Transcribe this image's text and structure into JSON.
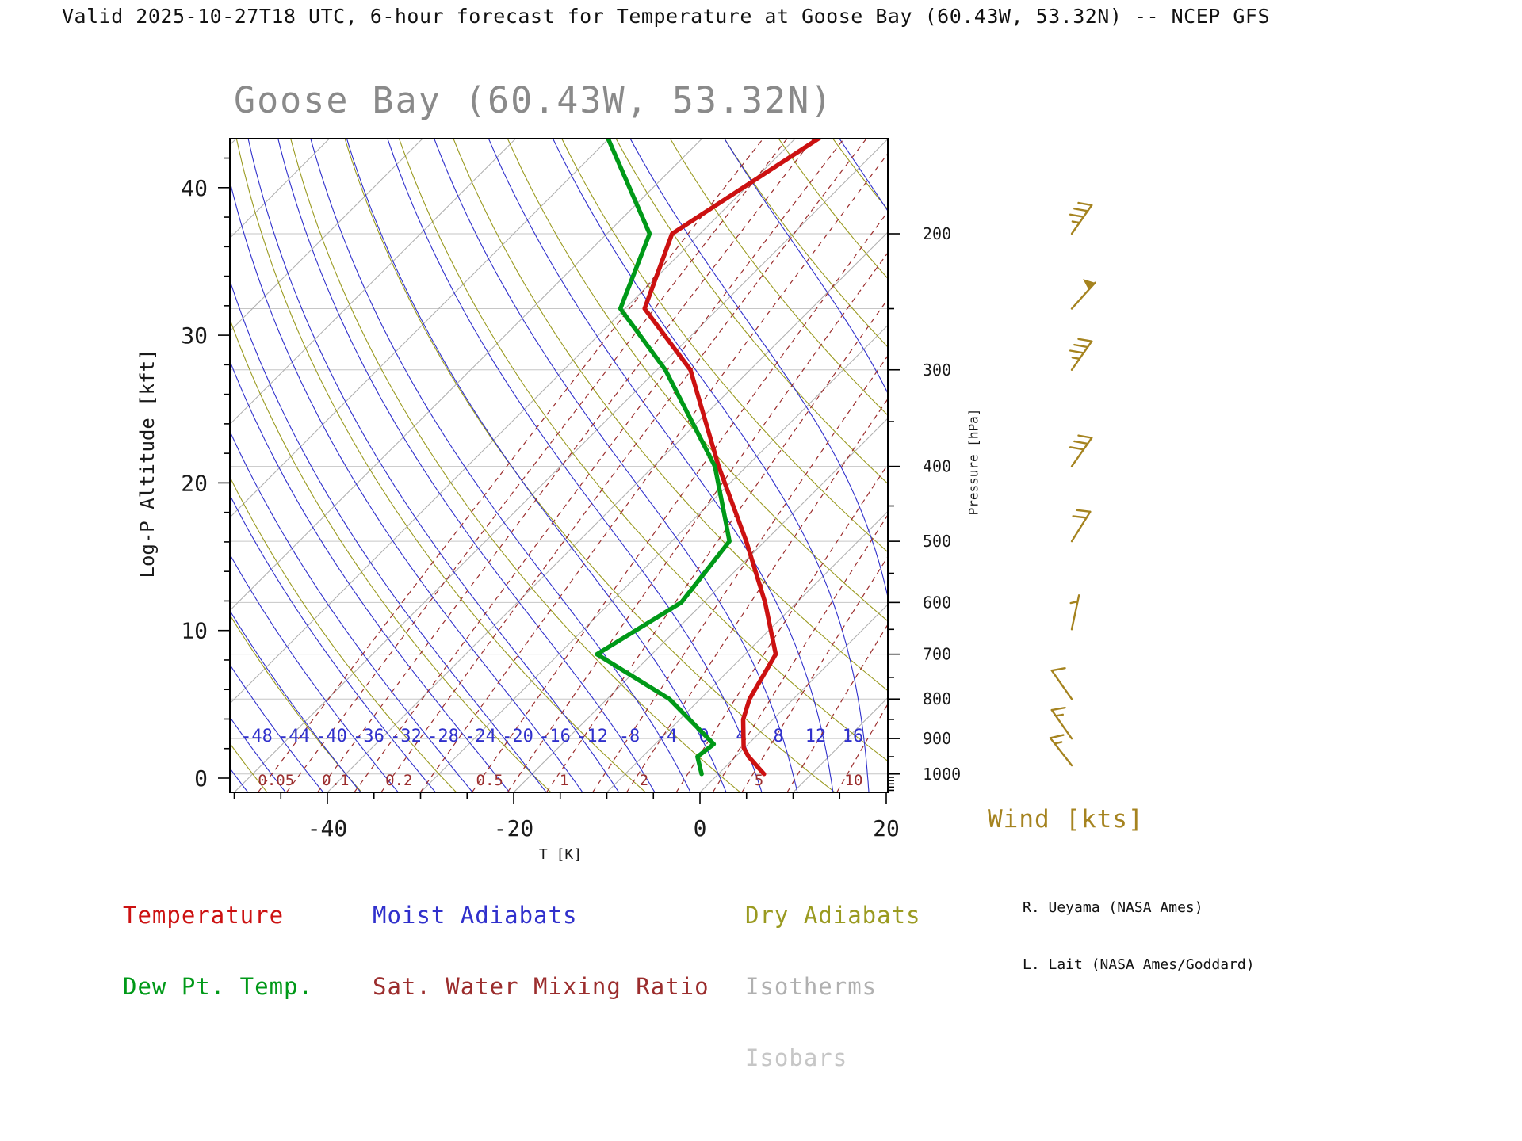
{
  "header": {
    "title": "Valid 2025-10-27T18 UTC, 6-hour forecast for Temperature at Goose Bay (60.43W, 53.32N) -- NCEP GFS"
  },
  "plot": {
    "title": "Goose Bay (60.43W, 53.32N)",
    "left_axis_label": "Log-P Altitude [kft]",
    "right_axis_label": "Pressure [hPa]",
    "bottom_axis_label": "T [K]"
  },
  "legend": {
    "temperature": "Temperature",
    "dew_point": "Dew Pt. Temp.",
    "moist_adiabats": "Moist Adiabats",
    "sat_water_mixing_ratio": "Sat. Water Mixing Ratio",
    "dry_adiabats": "Dry Adiabats",
    "isotherms": "Isotherms",
    "isobars": "Isobars",
    "wind_units": "Wind [kts]"
  },
  "credits": {
    "line1": "R. Ueyama (NASA Ames)",
    "line2": "L. Lait (NASA Ames/Goddard)"
  },
  "colors": {
    "temperature": "#cc1111",
    "dew_point": "#009918",
    "moist_adiabat": "#3030cc",
    "mixing_ratio": "#9b2d2d",
    "dry_adiabat": "#9a9a20",
    "isotherm": "#b0b0b0",
    "isobar": "#c6c6c6",
    "wind": "#a5831f",
    "plot_title": "#8a8a8a",
    "axis_text": "#1a1a1a"
  },
  "chart_data": {
    "type": "line",
    "subtype": "skew-t-log-p-sounding",
    "title": "Goose Bay (60.43W, 53.32N)",
    "x_axis": {
      "label": "T [K]",
      "tick_labels": [
        -40,
        -20,
        0,
        20
      ]
    },
    "left_axis": {
      "label": "Log-P Altitude [kft]",
      "tick_labels": [
        0,
        10,
        20,
        30,
        40
      ]
    },
    "right_axis": {
      "label": "Pressure [hPa]",
      "tick_labels": [
        200,
        300,
        400,
        500,
        600,
        700,
        800,
        900,
        1000
      ]
    },
    "series": [
      {
        "name": "Temperature",
        "pressure_hPa": [
          1000,
          950,
          925,
          850,
          800,
          700,
          600,
          500,
          400,
          300,
          250,
          200,
          150
        ],
        "temp_C": [
          4.9,
          1.4,
          -0.1,
          -3.2,
          -4.7,
          -6.7,
          -13.4,
          -22.0,
          -33.0,
          -46.4,
          -57.9,
          -63.0,
          -57.4
        ]
      },
      {
        "name": "Dew Pt. Temp.",
        "pressure_hPa": [
          1000,
          950,
          915,
          800,
          700,
          600,
          500,
          475,
          400,
          300,
          250,
          200,
          150
        ],
        "temp_C": [
          -1.8,
          -4.1,
          -3.7,
          -13.3,
          -25.9,
          -22.4,
          -23.8,
          -26.0,
          -33.4,
          -49.1,
          -60.5,
          -65.4,
          -80.3
        ]
      }
    ],
    "moist_adiabat_labels_C": [
      -48,
      -44,
      -40,
      -36,
      -32,
      -28,
      -24,
      -20,
      -16,
      -12,
      -8,
      -4,
      0,
      4,
      8,
      12,
      16
    ],
    "mixing_ratio_labels_g_kg": [
      0.05,
      0.1,
      0.2,
      0.5,
      1,
      2,
      5,
      10
    ],
    "isobar_levels_hPa": [
      200,
      250,
      300,
      400,
      500,
      600,
      700,
      800,
      900,
      1000
    ],
    "isotherm_step_C": 10,
    "wind_barbs": [
      {
        "pressure_hPa": 200,
        "speed_kts": 35,
        "angle_deg": -55
      },
      {
        "pressure_hPa": 250,
        "speed_kts": 50,
        "angle_deg": -48
      },
      {
        "pressure_hPa": 300,
        "speed_kts": 35,
        "angle_deg": -55
      },
      {
        "pressure_hPa": 400,
        "speed_kts": 30,
        "angle_deg": -55
      },
      {
        "pressure_hPa": 500,
        "speed_kts": 20,
        "angle_deg": -58
      },
      {
        "pressure_hPa": 650,
        "speed_kts": 5,
        "angle_deg": -78
      },
      {
        "pressure_hPa": 800,
        "speed_kts": 10,
        "angle_deg": -125
      },
      {
        "pressure_hPa": 900,
        "speed_kts": 15,
        "angle_deg": -125
      },
      {
        "pressure_hPa": 975,
        "speed_kts": 15,
        "angle_deg": -128
      }
    ]
  }
}
